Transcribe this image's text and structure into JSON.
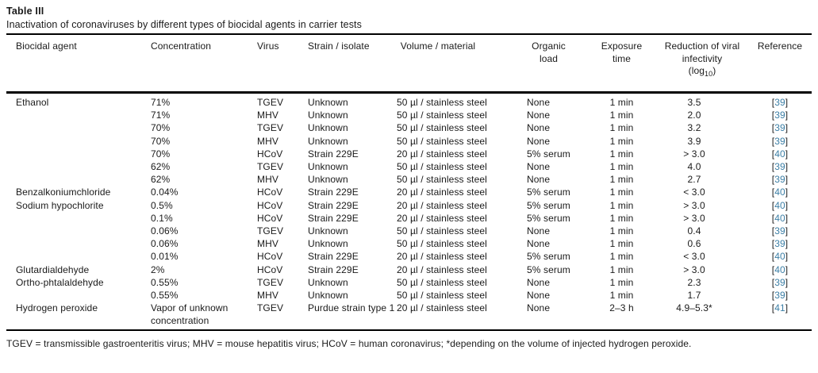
{
  "caption": {
    "title": "Table III",
    "subtitle": "Inactivation of coronaviruses by different types of biocidal agents in carrier tests"
  },
  "tokens": {
    "bracket_open": "[",
    "bracket_close": "]"
  },
  "table": {
    "headers": {
      "biocidal_agent": "Biocidal agent",
      "concentration": "Concentration",
      "virus": "Virus",
      "strain": "Strain / isolate",
      "volume": "Volume / material",
      "organic_load": "Organic load",
      "exposure_time": "Exposure time",
      "reduction_main": "Reduction of viral infectivity",
      "reduction_log_open": "(log",
      "reduction_log_sub": "10",
      "reduction_log_close": ")",
      "reference": "Reference"
    },
    "rows": [
      {
        "agent": "Ethanol",
        "concentration": "71%",
        "virus": "TGEV",
        "strain": "Unknown",
        "volume": "50 µl / stainless steel",
        "organic_load": "None",
        "exposure_time": "1 min",
        "reduction": "3.5",
        "reference": "39"
      },
      {
        "agent": "",
        "concentration": "71%",
        "virus": "MHV",
        "strain": "Unknown",
        "volume": "50 µl / stainless steel",
        "organic_load": "None",
        "exposure_time": "1 min",
        "reduction": "2.0",
        "reference": "39"
      },
      {
        "agent": "",
        "concentration": "70%",
        "virus": "TGEV",
        "strain": "Unknown",
        "volume": "50 µl / stainless steel",
        "organic_load": "None",
        "exposure_time": "1 min",
        "reduction": "3.2",
        "reference": "39"
      },
      {
        "agent": "",
        "concentration": "70%",
        "virus": "MHV",
        "strain": "Unknown",
        "volume": "50 µl / stainless steel",
        "organic_load": "None",
        "exposure_time": "1 min",
        "reduction": "3.9",
        "reference": "39"
      },
      {
        "agent": "",
        "concentration": "70%",
        "virus": "HCoV",
        "strain": "Strain 229E",
        "volume": "20 µl / stainless steel",
        "organic_load": "5% serum",
        "exposure_time": "1 min",
        "reduction": "> 3.0",
        "reference": "40"
      },
      {
        "agent": "",
        "concentration": "62%",
        "virus": "TGEV",
        "strain": "Unknown",
        "volume": "50 µl / stainless steel",
        "organic_load": "None",
        "exposure_time": "1 min",
        "reduction": "4.0",
        "reference": "39"
      },
      {
        "agent": "",
        "concentration": "62%",
        "virus": "MHV",
        "strain": "Unknown",
        "volume": "50 µl / stainless steel",
        "organic_load": "None",
        "exposure_time": "1 min",
        "reduction": "2.7",
        "reference": "39"
      },
      {
        "agent": "Benzalkoniumchloride",
        "concentration": "0.04%",
        "virus": "HCoV",
        "strain": "Strain 229E",
        "volume": "20 µl / stainless steel",
        "organic_load": "5% serum",
        "exposure_time": "1 min",
        "reduction": "< 3.0",
        "reference": "40"
      },
      {
        "agent": "Sodium hypochlorite",
        "concentration": "0.5%",
        "virus": "HCoV",
        "strain": "Strain 229E",
        "volume": "20 µl / stainless steel",
        "organic_load": "5% serum",
        "exposure_time": "1 min",
        "reduction": "> 3.0",
        "reference": "40"
      },
      {
        "agent": "",
        "concentration": "0.1%",
        "virus": "HCoV",
        "strain": "Strain 229E",
        "volume": "20 µl / stainless steel",
        "organic_load": "5% serum",
        "exposure_time": "1 min",
        "reduction": "> 3.0",
        "reference": "40"
      },
      {
        "agent": "",
        "concentration": "0.06%",
        "virus": "TGEV",
        "strain": "Unknown",
        "volume": "50 µl / stainless steel",
        "organic_load": "None",
        "exposure_time": "1 min",
        "reduction": "0.4",
        "reference": "39"
      },
      {
        "agent": "",
        "concentration": "0.06%",
        "virus": "MHV",
        "strain": "Unknown",
        "volume": "50 µl / stainless steel",
        "organic_load": "None",
        "exposure_time": "1 min",
        "reduction": "0.6",
        "reference": "39"
      },
      {
        "agent": "",
        "concentration": "0.01%",
        "virus": "HCoV",
        "strain": "Strain 229E",
        "volume": "20 µl / stainless steel",
        "organic_load": "5% serum",
        "exposure_time": "1 min",
        "reduction": "< 3.0",
        "reference": "40"
      },
      {
        "agent": "Glutardialdehyde",
        "concentration": "2%",
        "virus": "HCoV",
        "strain": "Strain 229E",
        "volume": "20 µl / stainless steel",
        "organic_load": "5% serum",
        "exposure_time": "1 min",
        "reduction": "> 3.0",
        "reference": "40"
      },
      {
        "agent": "Ortho-phtalaldehyde",
        "concentration": "0.55%",
        "virus": "TGEV",
        "strain": "Unknown",
        "volume": "50 µl / stainless steel",
        "organic_load": "None",
        "exposure_time": "1 min",
        "reduction": "2.3",
        "reference": "39"
      },
      {
        "agent": "",
        "concentration": "0.55%",
        "virus": "MHV",
        "strain": "Unknown",
        "volume": "50 µl / stainless steel",
        "organic_load": "None",
        "exposure_time": "1 min",
        "reduction": "1.7",
        "reference": "39"
      },
      {
        "agent": "Hydrogen peroxide",
        "concentration": "Vapor of unknown concentration",
        "virus": "TGEV",
        "strain": "Purdue strain type 1",
        "volume": "20 µl / stainless steel",
        "organic_load": "None",
        "exposure_time": "2–3 h",
        "reduction": "4.9–5.3*",
        "reference": "41"
      }
    ]
  },
  "footnote": "TGEV = transmissible gastroenteritis virus; MHV = mouse hepatitis virus; HCoV = human coronavirus; *depending on the volume of injected hydrogen peroxide.",
  "colors": {
    "reference_number": "#3c7fa6",
    "text": "#1a1a1a",
    "rule": "#000000"
  }
}
